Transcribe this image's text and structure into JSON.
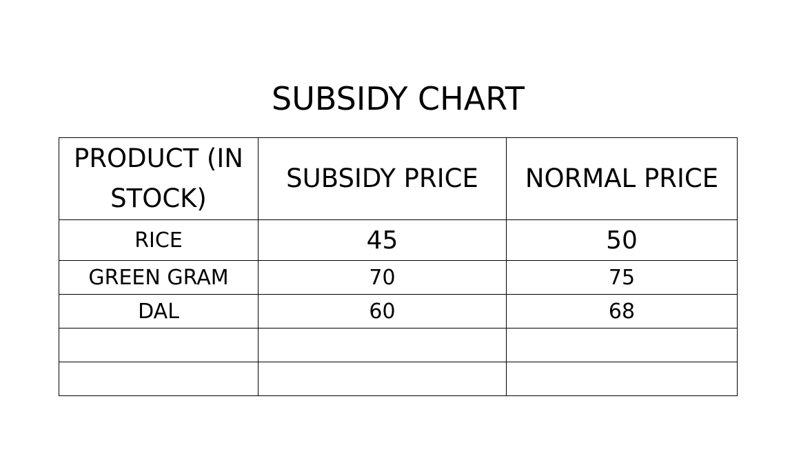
{
  "title": "SUBSIDY CHART",
  "table": {
    "headers": [
      "PRODUCT (IN STOCK)",
      "SUBSIDY PRICE",
      "NORMAL PRICE"
    ],
    "rows": [
      {
        "product": "RICE",
        "subsidy_price": "45",
        "normal_price": "50"
      },
      {
        "product": "GREEN GRAM",
        "subsidy_price": "70",
        "normal_price": "75"
      },
      {
        "product": "DAL",
        "subsidy_price": "60",
        "normal_price": "68"
      },
      {
        "product": "",
        "subsidy_price": "",
        "normal_price": ""
      },
      {
        "product": "",
        "subsidy_price": "",
        "normal_price": ""
      }
    ]
  }
}
